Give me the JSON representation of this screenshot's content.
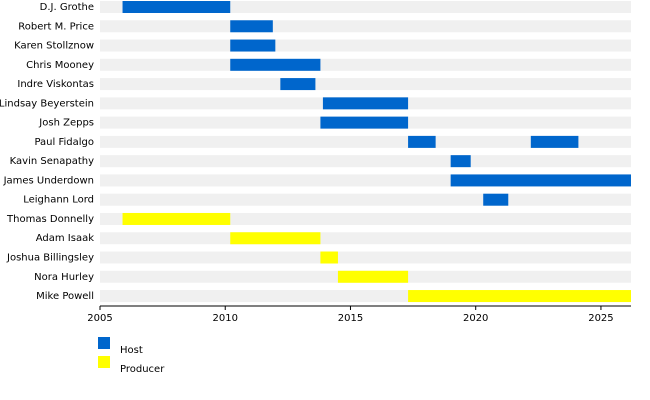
{
  "chart_data": {
    "type": "timeline",
    "categories": [
      "D.J. Grothe",
      "Robert M. Price",
      "Karen Stollznow",
      "Chris Mooney",
      "Indre Viskontas",
      "Lindsay Beyerstein",
      "Josh Zepps",
      "Paul Fidalgo",
      "Kavin Senapathy",
      "James Underdown",
      "Leighann Lord",
      "Thomas Donnelly",
      "Adam Isaak",
      "Joshua Billingsley",
      "Nora Hurley",
      "Mike Powell"
    ],
    "series": [
      {
        "name": "Host",
        "color": "#0066cc",
        "values": [
          [
            [
              2005.9,
              2010.2
            ]
          ],
          [
            [
              2010.2,
              2011.9
            ]
          ],
          [
            [
              2010.2,
              2012.0
            ]
          ],
          [
            [
              2010.2,
              2013.8
            ]
          ],
          [
            [
              2012.2,
              2013.6
            ]
          ],
          [
            [
              2013.9,
              2017.3
            ]
          ],
          [
            [
              2013.8,
              2017.3
            ]
          ],
          [
            [
              2017.3,
              2018.4
            ],
            [
              2022.2,
              2024.1
            ]
          ],
          [
            [
              2019.0,
              2019.8
            ]
          ],
          [
            [
              2019.0,
              2026.2
            ]
          ],
          [
            [
              2020.3,
              2021.3
            ]
          ],
          [],
          [],
          [],
          [],
          []
        ]
      },
      {
        "name": "Producer",
        "color": "#ffff00",
        "values": [
          [],
          [],
          [],
          [],
          [],
          [],
          [],
          [],
          [],
          [],
          [],
          [
            [
              2005.9,
              2010.2
            ]
          ],
          [
            [
              2010.2,
              2013.8
            ]
          ],
          [
            [
              2013.8,
              2014.5
            ]
          ],
          [
            [
              2014.5,
              2017.3
            ]
          ],
          [
            [
              2017.3,
              2026.2
            ]
          ]
        ]
      }
    ],
    "xlim": [
      2005,
      2026.2
    ],
    "xticks": [
      2005,
      2010,
      2015,
      2020,
      2025
    ]
  }
}
